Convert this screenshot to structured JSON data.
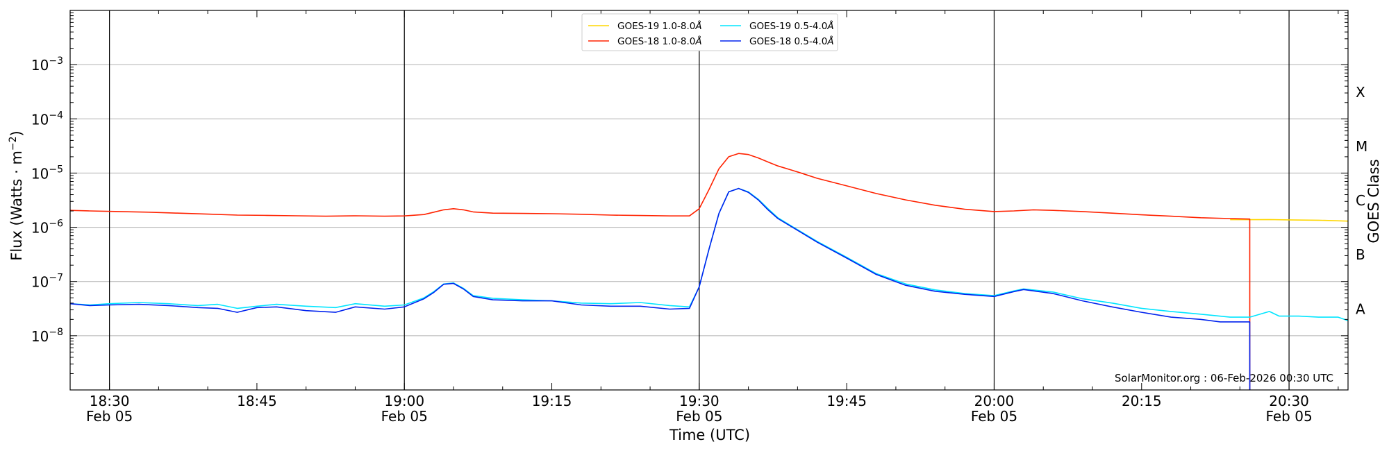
{
  "chart_data": {
    "type": "line",
    "xlabel": "Time (UTC)",
    "ylabel": "Flux (Watts · m",
    "ylabel_sup": "−2",
    "ylabel_close": ")",
    "right_label": "GOES Class",
    "credit": "SolarMonitor.org : 06-Feb-2026 00:30 UTC",
    "xlim": [
      "18:26",
      "20:36"
    ],
    "ylim": [
      1e-09,
      0.01
    ],
    "y_scale": "log",
    "grid": "horizontal",
    "legend_position": "top-center",
    "x_ticks": [
      {
        "time": "18:30",
        "label": "18:30",
        "date": "Feb 05"
      },
      {
        "time": "18:45",
        "label": "18:45",
        "date": ""
      },
      {
        "time": "19:00",
        "label": "19:00",
        "date": "Feb 05"
      },
      {
        "time": "19:15",
        "label": "19:15",
        "date": ""
      },
      {
        "time": "19:30",
        "label": "19:30",
        "date": "Feb 05"
      },
      {
        "time": "19:45",
        "label": "19:45",
        "date": ""
      },
      {
        "time": "20:00",
        "label": "20:00",
        "date": "Feb 05"
      },
      {
        "time": "20:15",
        "label": "20:15",
        "date": ""
      },
      {
        "time": "20:30",
        "label": "20:30",
        "date": "Feb 05"
      }
    ],
    "day_lines": [
      "18:30",
      "19:00",
      "19:30",
      "20:00",
      "20:30"
    ],
    "y_ticks": [
      {
        "value": 0.001,
        "base": "10",
        "exp": "−3"
      },
      {
        "value": 0.0001,
        "base": "10",
        "exp": "−4"
      },
      {
        "value": 1e-05,
        "base": "10",
        "exp": "−5"
      },
      {
        "value": 1e-06,
        "base": "10",
        "exp": "−6"
      },
      {
        "value": 1e-07,
        "base": "10",
        "exp": "−7"
      },
      {
        "value": 1e-08,
        "base": "10",
        "exp": "−8"
      }
    ],
    "classes": [
      {
        "label": "X",
        "value": 0.00032
      },
      {
        "label": "M",
        "value": 3.2e-05
      },
      {
        "label": "C",
        "value": 3.2e-06
      },
      {
        "label": "B",
        "value": 3.2e-07
      },
      {
        "label": "A",
        "value": 3.2e-08
      }
    ],
    "series": [
      {
        "name": "GOES-19 1.0-8.0",
        "unit": "Å",
        "color": "#ffd700",
        "points": [
          [
            "20:24",
            1.38e-06
          ],
          [
            "20:26",
            1.38e-06
          ],
          [
            "20:28",
            1.39e-06
          ],
          [
            "20:30",
            1.37e-06
          ],
          [
            "20:33",
            1.35e-06
          ],
          [
            "20:36",
            1.3e-06
          ]
        ]
      },
      {
        "name": "GOES-18 1.0-8.0",
        "unit": "Å",
        "color": "#ff2200",
        "points": [
          [
            "18:26",
            2.05e-06
          ],
          [
            "18:28",
            2e-06
          ],
          [
            "18:31",
            1.95e-06
          ],
          [
            "18:34",
            1.9e-06
          ],
          [
            "18:37",
            1.82e-06
          ],
          [
            "18:40",
            1.75e-06
          ],
          [
            "18:43",
            1.68e-06
          ],
          [
            "18:46",
            1.66e-06
          ],
          [
            "18:49",
            1.63e-06
          ],
          [
            "18:52",
            1.6e-06
          ],
          [
            "18:55",
            1.63e-06
          ],
          [
            "18:58",
            1.6e-06
          ],
          [
            "19:00",
            1.62e-06
          ],
          [
            "19:02",
            1.72e-06
          ],
          [
            "19:03",
            1.9e-06
          ],
          [
            "19:04",
            2.1e-06
          ],
          [
            "19:05",
            2.2e-06
          ],
          [
            "19:06",
            2.1e-06
          ],
          [
            "19:07",
            1.92e-06
          ],
          [
            "19:09",
            1.82e-06
          ],
          [
            "19:12",
            1.8e-06
          ],
          [
            "19:15",
            1.78e-06
          ],
          [
            "19:18",
            1.74e-06
          ],
          [
            "19:21",
            1.68e-06
          ],
          [
            "19:24",
            1.65e-06
          ],
          [
            "19:27",
            1.62e-06
          ],
          [
            "19:29",
            1.62e-06
          ],
          [
            "19:30",
            2.2e-06
          ],
          [
            "19:31",
            5e-06
          ],
          [
            "19:32",
            1.2e-05
          ],
          [
            "19:33",
            2e-05
          ],
          [
            "19:34",
            2.3e-05
          ],
          [
            "19:35",
            2.2e-05
          ],
          [
            "19:36",
            1.9e-05
          ],
          [
            "19:37",
            1.6e-05
          ],
          [
            "19:38",
            1.35e-05
          ],
          [
            "19:40",
            1.05e-05
          ],
          [
            "19:42",
            8e-06
          ],
          [
            "19:45",
            5.8e-06
          ],
          [
            "19:48",
            4.2e-06
          ],
          [
            "19:51",
            3.2e-06
          ],
          [
            "19:54",
            2.55e-06
          ],
          [
            "19:57",
            2.15e-06
          ],
          [
            "20:00",
            1.95e-06
          ],
          [
            "20:02",
            2e-06
          ],
          [
            "20:04",
            2.1e-06
          ],
          [
            "20:06",
            2.05e-06
          ],
          [
            "20:09",
            1.95e-06
          ],
          [
            "20:12",
            1.82e-06
          ],
          [
            "20:15",
            1.7e-06
          ],
          [
            "20:18",
            1.6e-06
          ],
          [
            "20:21",
            1.5e-06
          ],
          [
            "20:24",
            1.45e-06
          ],
          [
            "20:26",
            1.42e-06
          ],
          [
            "20:26.01",
            1e-09
          ]
        ]
      },
      {
        "name": "GOES-19 0.5-4.0",
        "unit": "Å",
        "color": "#00e5ff",
        "points": [
          [
            "18:26",
            3.9e-08
          ],
          [
            "18:28",
            3.7e-08
          ],
          [
            "18:30",
            3.9e-08
          ],
          [
            "18:33",
            4.1e-08
          ],
          [
            "18:36",
            3.9e-08
          ],
          [
            "18:39",
            3.6e-08
          ],
          [
            "18:41",
            3.8e-08
          ],
          [
            "18:43",
            3.2e-08
          ],
          [
            "18:45",
            3.5e-08
          ],
          [
            "18:47",
            3.8e-08
          ],
          [
            "18:50",
            3.5e-08
          ],
          [
            "18:53",
            3.3e-08
          ],
          [
            "18:55",
            3.9e-08
          ],
          [
            "18:58",
            3.5e-08
          ],
          [
            "19:00",
            3.7e-08
          ],
          [
            "19:02",
            5e-08
          ],
          [
            "19:03",
            6.5e-08
          ],
          [
            "19:04",
            9e-08
          ],
          [
            "19:05",
            9.4e-08
          ],
          [
            "19:06",
            7.5e-08
          ],
          [
            "19:07",
            5.5e-08
          ],
          [
            "19:09",
            4.9e-08
          ],
          [
            "19:12",
            4.6e-08
          ],
          [
            "19:15",
            4.4e-08
          ],
          [
            "19:18",
            4e-08
          ],
          [
            "19:21",
            3.9e-08
          ],
          [
            "19:24",
            4.1e-08
          ],
          [
            "19:27",
            3.6e-08
          ],
          [
            "19:29",
            3.4e-08
          ],
          [
            "19:30",
            8e-08
          ],
          [
            "19:31",
            4e-07
          ],
          [
            "19:32",
            1.8e-06
          ],
          [
            "19:33",
            4.5e-06
          ],
          [
            "19:34",
            5.2e-06
          ],
          [
            "19:35",
            4.5e-06
          ],
          [
            "19:36",
            3.3e-06
          ],
          [
            "19:37",
            2.2e-06
          ],
          [
            "19:38",
            1.5e-06
          ],
          [
            "19:40",
            9e-07
          ],
          [
            "19:42",
            5.5e-07
          ],
          [
            "19:45",
            2.8e-07
          ],
          [
            "19:48",
            1.4e-07
          ],
          [
            "19:51",
            9e-08
          ],
          [
            "19:54",
            7e-08
          ],
          [
            "19:57",
            6e-08
          ],
          [
            "20:00",
            5.5e-08
          ],
          [
            "20:02",
            6.7e-08
          ],
          [
            "20:03",
            7.3e-08
          ],
          [
            "20:06",
            6.4e-08
          ],
          [
            "20:09",
            4.8e-08
          ],
          [
            "20:12",
            4e-08
          ],
          [
            "20:15",
            3.2e-08
          ],
          [
            "20:18",
            2.8e-08
          ],
          [
            "20:21",
            2.5e-08
          ],
          [
            "20:24",
            2.2e-08
          ],
          [
            "20:26",
            2.2e-08
          ],
          [
            "20:28",
            2.8e-08
          ],
          [
            "20:29",
            2.3e-08
          ],
          [
            "20:31",
            2.3e-08
          ],
          [
            "20:33",
            2.2e-08
          ],
          [
            "20:35",
            2.2e-08
          ],
          [
            "20:36",
            1.9e-08
          ]
        ]
      },
      {
        "name": "GOES-18 0.5-4.0",
        "unit": "Å",
        "color": "#0022ee",
        "points": [
          [
            "18:26",
            3.9e-08
          ],
          [
            "18:28",
            3.6e-08
          ],
          [
            "18:30",
            3.7e-08
          ],
          [
            "18:33",
            3.8e-08
          ],
          [
            "18:36",
            3.6e-08
          ],
          [
            "18:39",
            3.3e-08
          ],
          [
            "18:41",
            3.2e-08
          ],
          [
            "18:43",
            2.7e-08
          ],
          [
            "18:45",
            3.3e-08
          ],
          [
            "18:47",
            3.4e-08
          ],
          [
            "18:50",
            2.9e-08
          ],
          [
            "18:53",
            2.7e-08
          ],
          [
            "18:55",
            3.4e-08
          ],
          [
            "18:58",
            3.1e-08
          ],
          [
            "19:00",
            3.4e-08
          ],
          [
            "19:02",
            4.8e-08
          ],
          [
            "19:03",
            6.3e-08
          ],
          [
            "19:04",
            8.9e-08
          ],
          [
            "19:05",
            9.2e-08
          ],
          [
            "19:06",
            7.3e-08
          ],
          [
            "19:07",
            5.3e-08
          ],
          [
            "19:09",
            4.6e-08
          ],
          [
            "19:12",
            4.4e-08
          ],
          [
            "19:15",
            4.4e-08
          ],
          [
            "19:18",
            3.7e-08
          ],
          [
            "19:21",
            3.5e-08
          ],
          [
            "19:24",
            3.5e-08
          ],
          [
            "19:27",
            3.1e-08
          ],
          [
            "19:29",
            3.2e-08
          ],
          [
            "19:30",
            8e-08
          ],
          [
            "19:31",
            4e-07
          ],
          [
            "19:32",
            1.8e-06
          ],
          [
            "19:33",
            4.5e-06
          ],
          [
            "19:34",
            5.2e-06
          ],
          [
            "19:35",
            4.4e-06
          ],
          [
            "19:36",
            3.2e-06
          ],
          [
            "19:37",
            2.1e-06
          ],
          [
            "19:38",
            1.45e-06
          ],
          [
            "19:40",
            8.8e-07
          ],
          [
            "19:42",
            5.3e-07
          ],
          [
            "19:45",
            2.7e-07
          ],
          [
            "19:48",
            1.35e-07
          ],
          [
            "19:51",
            8.5e-08
          ],
          [
            "19:54",
            6.6e-08
          ],
          [
            "19:57",
            5.8e-08
          ],
          [
            "20:00",
            5.3e-08
          ],
          [
            "20:02",
            6.5e-08
          ],
          [
            "20:03",
            7.1e-08
          ],
          [
            "20:06",
            6e-08
          ],
          [
            "20:09",
            4.4e-08
          ],
          [
            "20:12",
            3.4e-08
          ],
          [
            "20:15",
            2.7e-08
          ],
          [
            "20:18",
            2.2e-08
          ],
          [
            "20:21",
            2e-08
          ],
          [
            "20:23",
            1.8e-08
          ],
          [
            "20:26",
            1.8e-08
          ],
          [
            "20:26.01",
            1e-09
          ]
        ]
      }
    ]
  }
}
